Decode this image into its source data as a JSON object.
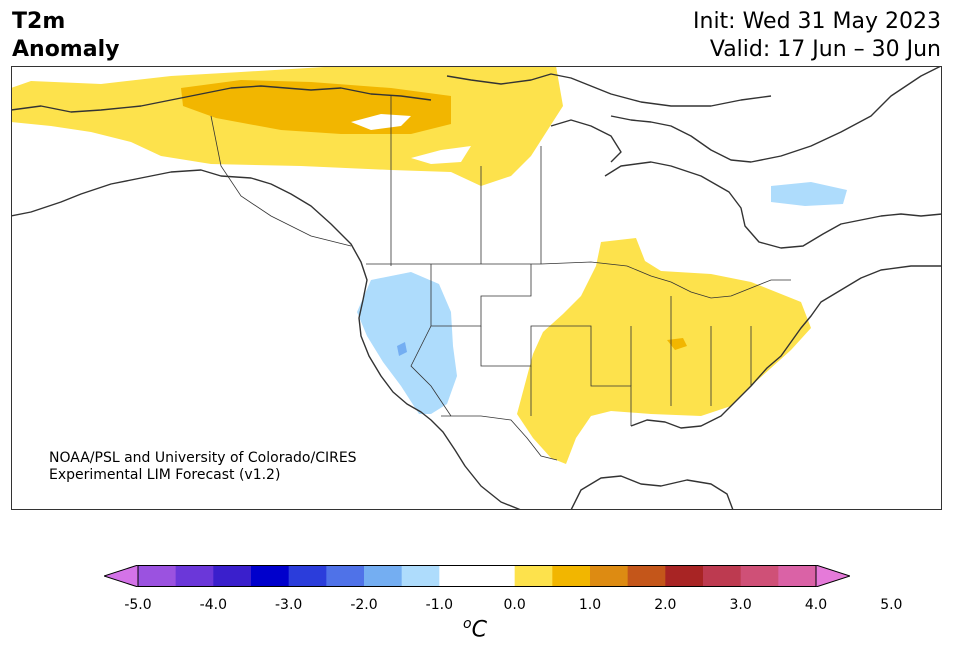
{
  "header": {
    "title_line1": "T2m",
    "title_line2": "Anomaly",
    "init": "Init: Wed 31 May 2023",
    "valid": "Valid: 17 Jun – 30 Jun"
  },
  "credit": {
    "line1": "NOAA/PSL and University of Colorado/CIRES",
    "line2": "Experimental LIM Forecast (v1.2)"
  },
  "colorbar": {
    "colors": [
      "#d473e8",
      "#9b52e0",
      "#6b37d9",
      "#3a1fcc",
      "#0000cc",
      "#2b3ddb",
      "#4f72e8",
      "#74aef2",
      "#aedcfc",
      "#ffffff",
      "#ffffff",
      "#fde24c",
      "#f2b600",
      "#dd8b12",
      "#c4561a",
      "#a82424",
      "#bd3a50",
      "#cf5077",
      "#da62a6",
      "#e57ad9"
    ],
    "tick_labels": [
      "-5.0",
      "-4.0",
      "-3.0",
      "-2.0",
      "-1.0",
      "0.0",
      "1.0",
      "2.0",
      "3.0",
      "4.0",
      "5.0"
    ],
    "unit_sup": "o",
    "unit": "C"
  }
}
